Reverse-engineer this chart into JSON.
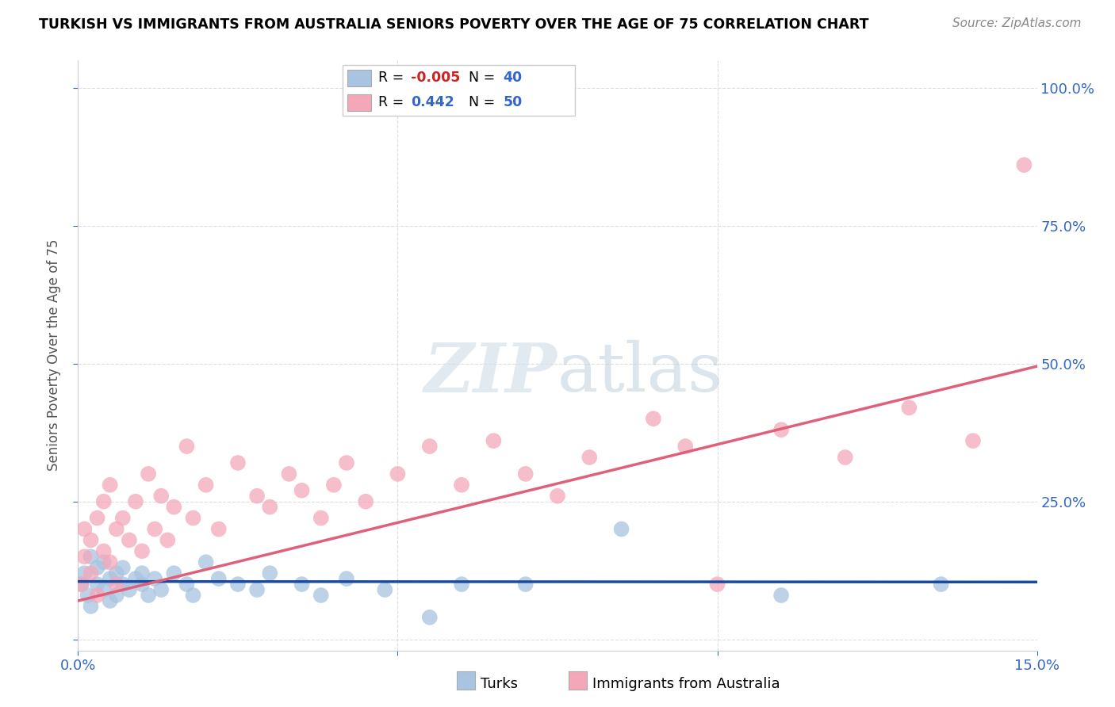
{
  "title": "TURKISH VS IMMIGRANTS FROM AUSTRALIA SENIORS POVERTY OVER THE AGE OF 75 CORRELATION CHART",
  "source": "Source: ZipAtlas.com",
  "ylabel": "Seniors Poverty Over the Age of 75",
  "xlim": [
    0.0,
    0.15
  ],
  "ylim": [
    -0.02,
    1.05
  ],
  "xticks": [
    0.0,
    0.05,
    0.1,
    0.15
  ],
  "xticklabels": [
    "0.0%",
    "",
    "",
    "15.0%"
  ],
  "yticks": [
    0.0,
    0.25,
    0.5,
    0.75,
    1.0
  ],
  "yticklabels_right": [
    "",
    "25.0%",
    "50.0%",
    "75.0%",
    "100.0%"
  ],
  "turks_R": "-0.005",
  "turks_N": "40",
  "aus_R": "0.442",
  "aus_N": "50",
  "turks_color": "#a8c4e0",
  "aus_color": "#f4a7b9",
  "turks_line_color": "#1a4a9e",
  "aus_line_color": "#e0607a",
  "background_color": "#ffffff",
  "grid_color": "#dddddd",
  "turks_x": [
    0.0005,
    0.001,
    0.0015,
    0.002,
    0.002,
    0.003,
    0.003,
    0.004,
    0.004,
    0.005,
    0.005,
    0.006,
    0.006,
    0.007,
    0.007,
    0.008,
    0.009,
    0.01,
    0.01,
    0.011,
    0.012,
    0.013,
    0.015,
    0.017,
    0.018,
    0.02,
    0.022,
    0.025,
    0.028,
    0.03,
    0.035,
    0.038,
    0.042,
    0.048,
    0.055,
    0.06,
    0.07,
    0.085,
    0.11,
    0.135
  ],
  "turks_y": [
    0.1,
    0.12,
    0.08,
    0.15,
    0.06,
    0.1,
    0.13,
    0.09,
    0.14,
    0.07,
    0.11,
    0.12,
    0.08,
    0.1,
    0.13,
    0.09,
    0.11,
    0.1,
    0.12,
    0.08,
    0.11,
    0.09,
    0.12,
    0.1,
    0.08,
    0.14,
    0.11,
    0.1,
    0.09,
    0.12,
    0.1,
    0.08,
    0.11,
    0.09,
    0.04,
    0.1,
    0.1,
    0.2,
    0.08,
    0.1
  ],
  "aus_x": [
    0.0005,
    0.001,
    0.001,
    0.002,
    0.002,
    0.003,
    0.003,
    0.004,
    0.004,
    0.005,
    0.005,
    0.006,
    0.006,
    0.007,
    0.008,
    0.009,
    0.01,
    0.011,
    0.012,
    0.013,
    0.014,
    0.015,
    0.017,
    0.018,
    0.02,
    0.022,
    0.025,
    0.028,
    0.03,
    0.033,
    0.035,
    0.038,
    0.04,
    0.042,
    0.045,
    0.05,
    0.055,
    0.06,
    0.065,
    0.07,
    0.075,
    0.08,
    0.09,
    0.095,
    0.1,
    0.11,
    0.12,
    0.13,
    0.14,
    0.148
  ],
  "aus_y": [
    0.1,
    0.15,
    0.2,
    0.12,
    0.18,
    0.22,
    0.08,
    0.25,
    0.16,
    0.28,
    0.14,
    0.2,
    0.1,
    0.22,
    0.18,
    0.25,
    0.16,
    0.3,
    0.2,
    0.26,
    0.18,
    0.24,
    0.35,
    0.22,
    0.28,
    0.2,
    0.32,
    0.26,
    0.24,
    0.3,
    0.27,
    0.22,
    0.28,
    0.32,
    0.25,
    0.3,
    0.35,
    0.28,
    0.36,
    0.3,
    0.26,
    0.33,
    0.4,
    0.35,
    0.1,
    0.38,
    0.33,
    0.42,
    0.36,
    0.86
  ],
  "turks_line": {
    "x0": 0.0,
    "x1": 0.15,
    "y0": 0.105,
    "y1": 0.104
  },
  "aus_line": {
    "x0": 0.0,
    "x1": 0.15,
    "y0": 0.07,
    "y1": 0.495
  }
}
